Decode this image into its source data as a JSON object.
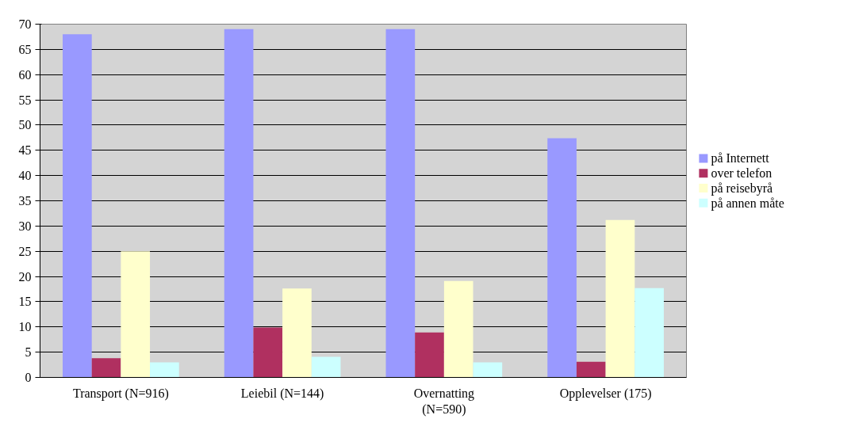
{
  "chart_data": {
    "type": "bar",
    "categories": [
      "Transport (N=916)",
      "Leiebil (N=144)",
      "Overnatting\n(N=590)",
      "Opplevelser (175)"
    ],
    "series": [
      {
        "name": "på Internett",
        "color": "#9999ff",
        "values": [
          68,
          69,
          69,
          47.4
        ]
      },
      {
        "name": "over telefon",
        "color": "#b03060",
        "values": [
          3.8,
          9.9,
          8.9,
          3.1
        ]
      },
      {
        "name": "på reisebyrå",
        "color": "#ffffcc",
        "values": [
          25,
          17.6,
          19.1,
          31.2
        ]
      },
      {
        "name": "på annen måte",
        "color": "#ccffff",
        "values": [
          3,
          4.1,
          3,
          17.7
        ]
      }
    ],
    "ylim": [
      0,
      70
    ],
    "yticks": [
      0,
      5,
      10,
      15,
      20,
      25,
      30,
      35,
      40,
      45,
      50,
      55,
      60,
      65,
      70
    ],
    "grid": "y",
    "legend": "right"
  }
}
